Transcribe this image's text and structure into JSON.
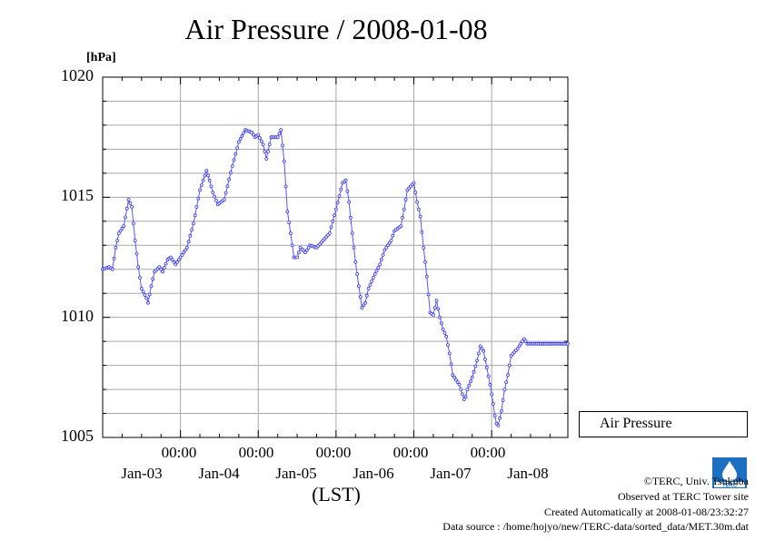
{
  "chart_data": {
    "type": "line",
    "title": "Air Pressure / 2008-01-08",
    "ylabel": "[hPa]",
    "xlabel": "(LST)",
    "ylim": [
      1005,
      1020
    ],
    "yticks": [
      "1005",
      "1010",
      "1015",
      "1020"
    ],
    "x_range_hours": [
      0,
      143.5
    ],
    "x_major_ticks": [
      {
        "time": "00:00",
        "date": "Jan-03"
      },
      {
        "time": "00:00",
        "date": "Jan-04"
      },
      {
        "time": "00:00",
        "date": "Jan-05"
      },
      {
        "time": "00:00",
        "date": "Jan-06"
      },
      {
        "time": "00:00",
        "date": "Jan-07"
      },
      {
        "time": "00:00",
        "date": "Jan-08"
      }
    ],
    "grid": true,
    "legend_position": "bottom-right",
    "series": [
      {
        "name": "Air Pressure",
        "color": "#0000ff",
        "marker": "circle",
        "knots": [
          [
            0,
            1012.0
          ],
          [
            2,
            1012.1
          ],
          [
            3,
            1012.0
          ],
          [
            4,
            1012.9
          ],
          [
            5,
            1013.5
          ],
          [
            6.5,
            1013.8
          ],
          [
            8,
            1014.9
          ],
          [
            9,
            1014.6
          ],
          [
            10,
            1013.2
          ],
          [
            11,
            1012.1
          ],
          [
            12,
            1011.2
          ],
          [
            13.5,
            1010.8
          ],
          [
            14,
            1010.6
          ],
          [
            15,
            1011.3
          ],
          [
            16,
            1011.9
          ],
          [
            17.5,
            1012.1
          ],
          [
            18.5,
            1011.9
          ],
          [
            20,
            1012.4
          ],
          [
            21,
            1012.5
          ],
          [
            22.5,
            1012.2
          ],
          [
            24,
            1012.5
          ],
          [
            26,
            1012.9
          ],
          [
            28,
            1013.9
          ],
          [
            30,
            1015.3
          ],
          [
            32,
            1016.1
          ],
          [
            33,
            1015.7
          ],
          [
            34,
            1015.2
          ],
          [
            35.5,
            1014.7
          ],
          [
            37.5,
            1014.9
          ],
          [
            40,
            1016.3
          ],
          [
            42,
            1017.3
          ],
          [
            44,
            1017.8
          ],
          [
            46,
            1017.7
          ],
          [
            47,
            1017.5
          ],
          [
            48,
            1017.6
          ],
          [
            49.5,
            1017.2
          ],
          [
            50.5,
            1016.6
          ],
          [
            52,
            1017.5
          ],
          [
            54,
            1017.5
          ],
          [
            55,
            1017.8
          ],
          [
            56,
            1016.5
          ],
          [
            57,
            1014.4
          ],
          [
            58,
            1013.5
          ],
          [
            59,
            1012.5
          ],
          [
            60,
            1012.5
          ],
          [
            61,
            1012.9
          ],
          [
            62.5,
            1012.7
          ],
          [
            64,
            1013.0
          ],
          [
            66,
            1012.9
          ],
          [
            68,
            1013.2
          ],
          [
            70,
            1013.5
          ],
          [
            72,
            1014.5
          ],
          [
            74,
            1015.6
          ],
          [
            75,
            1015.7
          ],
          [
            76,
            1014.8
          ],
          [
            77,
            1013.5
          ],
          [
            78,
            1012.3
          ],
          [
            79,
            1011.3
          ],
          [
            80,
            1010.4
          ],
          [
            81,
            1010.6
          ],
          [
            82,
            1011.2
          ],
          [
            84,
            1011.8
          ],
          [
            85.5,
            1012.2
          ],
          [
            87,
            1012.8
          ],
          [
            89,
            1013.2
          ],
          [
            90,
            1013.6
          ],
          [
            92,
            1013.8
          ],
          [
            93,
            1014.5
          ],
          [
            94,
            1015.3
          ],
          [
            96,
            1015.6
          ],
          [
            97,
            1014.8
          ],
          [
            98,
            1014.2
          ],
          [
            99,
            1012.9
          ],
          [
            100,
            1011.7
          ],
          [
            101,
            1010.2
          ],
          [
            102,
            1010.1
          ],
          [
            103,
            1010.7
          ],
          [
            104,
            1010.0
          ],
          [
            105,
            1009.5
          ],
          [
            106,
            1009.2
          ],
          [
            107,
            1008.5
          ],
          [
            108,
            1007.6
          ],
          [
            109,
            1007.4
          ],
          [
            110,
            1007.2
          ],
          [
            111,
            1006.8
          ],
          [
            111.7,
            1006.5
          ],
          [
            112.5,
            1007.0
          ],
          [
            114,
            1007.5
          ],
          [
            115.5,
            1008.2
          ],
          [
            116.5,
            1008.8
          ],
          [
            117.5,
            1008.6
          ],
          [
            118.5,
            1007.9
          ],
          [
            119.5,
            1007.2
          ],
          [
            120.5,
            1006.4
          ],
          [
            121.3,
            1005.6
          ],
          [
            122,
            1005.5
          ],
          [
            123,
            1006.1
          ],
          [
            124,
            1007.0
          ],
          [
            125,
            1007.6
          ],
          [
            126,
            1008.4
          ],
          [
            128,
            1008.7
          ],
          [
            129.5,
            1009.0
          ],
          [
            130,
            1009.1
          ],
          [
            131,
            1008.9
          ],
          [
            143.5,
            1008.9
          ]
        ]
      }
    ]
  },
  "legend": {
    "label": "Air Pressure"
  },
  "credits": {
    "org": "©TERC, Univ. Tsukuba",
    "site": "Observed at TERC Tower site",
    "created": "Created Automatically at 2008-01-08/23:32:27",
    "source": "Data source : /home/hojyo/new/TERC-data/sorted_data/MET.30m.dat"
  },
  "logo": {
    "text": "TERC"
  }
}
